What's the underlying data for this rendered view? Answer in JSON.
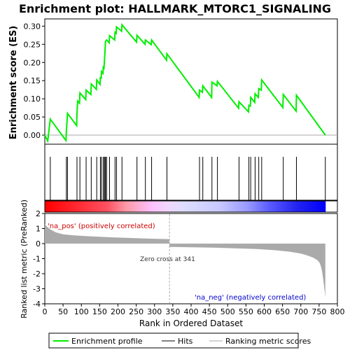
{
  "chart_data": {
    "type": "line",
    "title": "Enrichment plot: HALLMARK_MTORC1_SIGNALING",
    "colors": {
      "es_line": "#00ee00",
      "hits": "#000000",
      "metric_fill": "#aaaaaa",
      "pos_red": "#ff0000",
      "neg_blue": "#0000ff",
      "pos_label": "#cc0000",
      "neg_label": "#0000cc"
    },
    "xlim": [
      0,
      800
    ],
    "x_ticks": [
      "0",
      "50",
      "100",
      "150",
      "200",
      "250",
      "300",
      "350",
      "400",
      "450",
      "500",
      "550",
      "600",
      "650",
      "700",
      "750",
      "800"
    ],
    "es_panel": {
      "ylabel": "Enrichment score (ES)",
      "ylim": [
        -0.025,
        0.32
      ],
      "y_ticks": [
        "0.00",
        "0.05",
        "0.10",
        "0.15",
        "0.20",
        "0.25",
        "0.30"
      ],
      "hits": [
        0,
        15,
        59,
        62,
        88,
        96,
        113,
        127,
        142,
        152,
        155,
        160,
        163,
        165,
        166,
        169,
        177,
        192,
        196,
        211,
        252,
        275,
        292,
        334,
        423,
        432,
        457,
        472,
        531,
        558,
        563,
        575,
        585,
        593,
        652,
        688,
        767
      ],
      "es_points": [
        [
          0,
          0.0
        ],
        [
          8,
          -0.016
        ],
        [
          15,
          0.044
        ],
        [
          58,
          -0.015
        ],
        [
          59,
          0.01
        ],
        [
          60,
          0.024
        ],
        [
          62,
          0.06
        ],
        [
          87,
          0.026
        ],
        [
          88,
          0.062
        ],
        [
          90,
          0.094
        ],
        [
          95,
          0.088
        ],
        [
          96,
          0.116
        ],
        [
          112,
          0.098
        ],
        [
          113,
          0.124
        ],
        [
          126,
          0.112
        ],
        [
          127,
          0.141
        ],
        [
          141,
          0.126
        ],
        [
          142,
          0.152
        ],
        [
          151,
          0.14
        ],
        [
          152,
          0.16
        ],
        [
          154,
          0.155
        ],
        [
          155,
          0.175
        ],
        [
          159,
          0.17
        ],
        [
          160,
          0.19
        ],
        [
          162,
          0.186
        ],
        [
          163,
          0.205
        ],
        [
          164,
          0.22
        ],
        [
          165,
          0.24
        ],
        [
          166,
          0.258
        ],
        [
          169,
          0.262
        ],
        [
          176,
          0.254
        ],
        [
          177,
          0.274
        ],
        [
          191,
          0.262
        ],
        [
          192,
          0.283
        ],
        [
          195,
          0.28
        ],
        [
          196,
          0.298
        ],
        [
          210,
          0.286
        ],
        [
          211,
          0.304
        ],
        [
          251,
          0.256
        ],
        [
          252,
          0.275
        ],
        [
          274,
          0.25
        ],
        [
          275,
          0.262
        ],
        [
          291,
          0.249
        ],
        [
          292,
          0.262
        ],
        [
          333,
          0.206
        ],
        [
          334,
          0.224
        ],
        [
          422,
          0.104
        ],
        [
          423,
          0.124
        ],
        [
          431,
          0.118
        ],
        [
          432,
          0.136
        ],
        [
          456,
          0.104
        ],
        [
          457,
          0.146
        ],
        [
          471,
          0.136
        ],
        [
          472,
          0.148
        ],
        [
          530,
          0.074
        ],
        [
          531,
          0.092
        ],
        [
          557,
          0.064
        ],
        [
          558,
          0.082
        ],
        [
          562,
          0.08
        ],
        [
          563,
          0.104
        ],
        [
          574,
          0.09
        ],
        [
          575,
          0.114
        ],
        [
          584,
          0.104
        ],
        [
          585,
          0.128
        ],
        [
          592,
          0.124
        ],
        [
          593,
          0.152
        ],
        [
          651,
          0.076
        ],
        [
          652,
          0.112
        ],
        [
          687,
          0.066
        ],
        [
          688,
          0.11
        ],
        [
          767,
          0.0
        ]
      ]
    },
    "metric_panel": {
      "ylabel": "Ranked list metric (PreRanked)",
      "xlabel": "Rank in Ordered Dataset",
      "ylim": [
        -4,
        2
      ],
      "y_ticks": [
        "2",
        "1",
        "0",
        "-1",
        "-2",
        "-3",
        "-4"
      ],
      "zero_cross_label": "Zero cross at 341",
      "zero_cross": 341,
      "pos_label": "'na_pos' (positively correlated)",
      "neg_label": "'na_neg' (negatively correlated)",
      "n": 768,
      "curve": [
        [
          0,
          1.3
        ],
        [
          5,
          1.15
        ],
        [
          15,
          0.95
        ],
        [
          30,
          0.75
        ],
        [
          50,
          0.62
        ],
        [
          80,
          0.55
        ],
        [
          120,
          0.49
        ],
        [
          180,
          0.42
        ],
        [
          250,
          0.36
        ],
        [
          300,
          0.32
        ],
        [
          340,
          0.3
        ],
        [
          341,
          -0.22
        ],
        [
          400,
          -0.24
        ],
        [
          460,
          -0.27
        ],
        [
          520,
          -0.31
        ],
        [
          580,
          -0.36
        ],
        [
          630,
          -0.44
        ],
        [
          670,
          -0.54
        ],
        [
          700,
          -0.66
        ],
        [
          720,
          -0.8
        ],
        [
          735,
          -0.95
        ],
        [
          745,
          -1.1
        ],
        [
          752,
          -1.3
        ],
        [
          756,
          -1.6
        ],
        [
          759,
          -2.0
        ],
        [
          762,
          -2.5
        ],
        [
          765,
          -3.1
        ],
        [
          767,
          -3.6
        ]
      ]
    },
    "legend": {
      "entries": [
        "Enrichment profile",
        "Hits",
        "Ranking metric scores"
      ]
    }
  }
}
